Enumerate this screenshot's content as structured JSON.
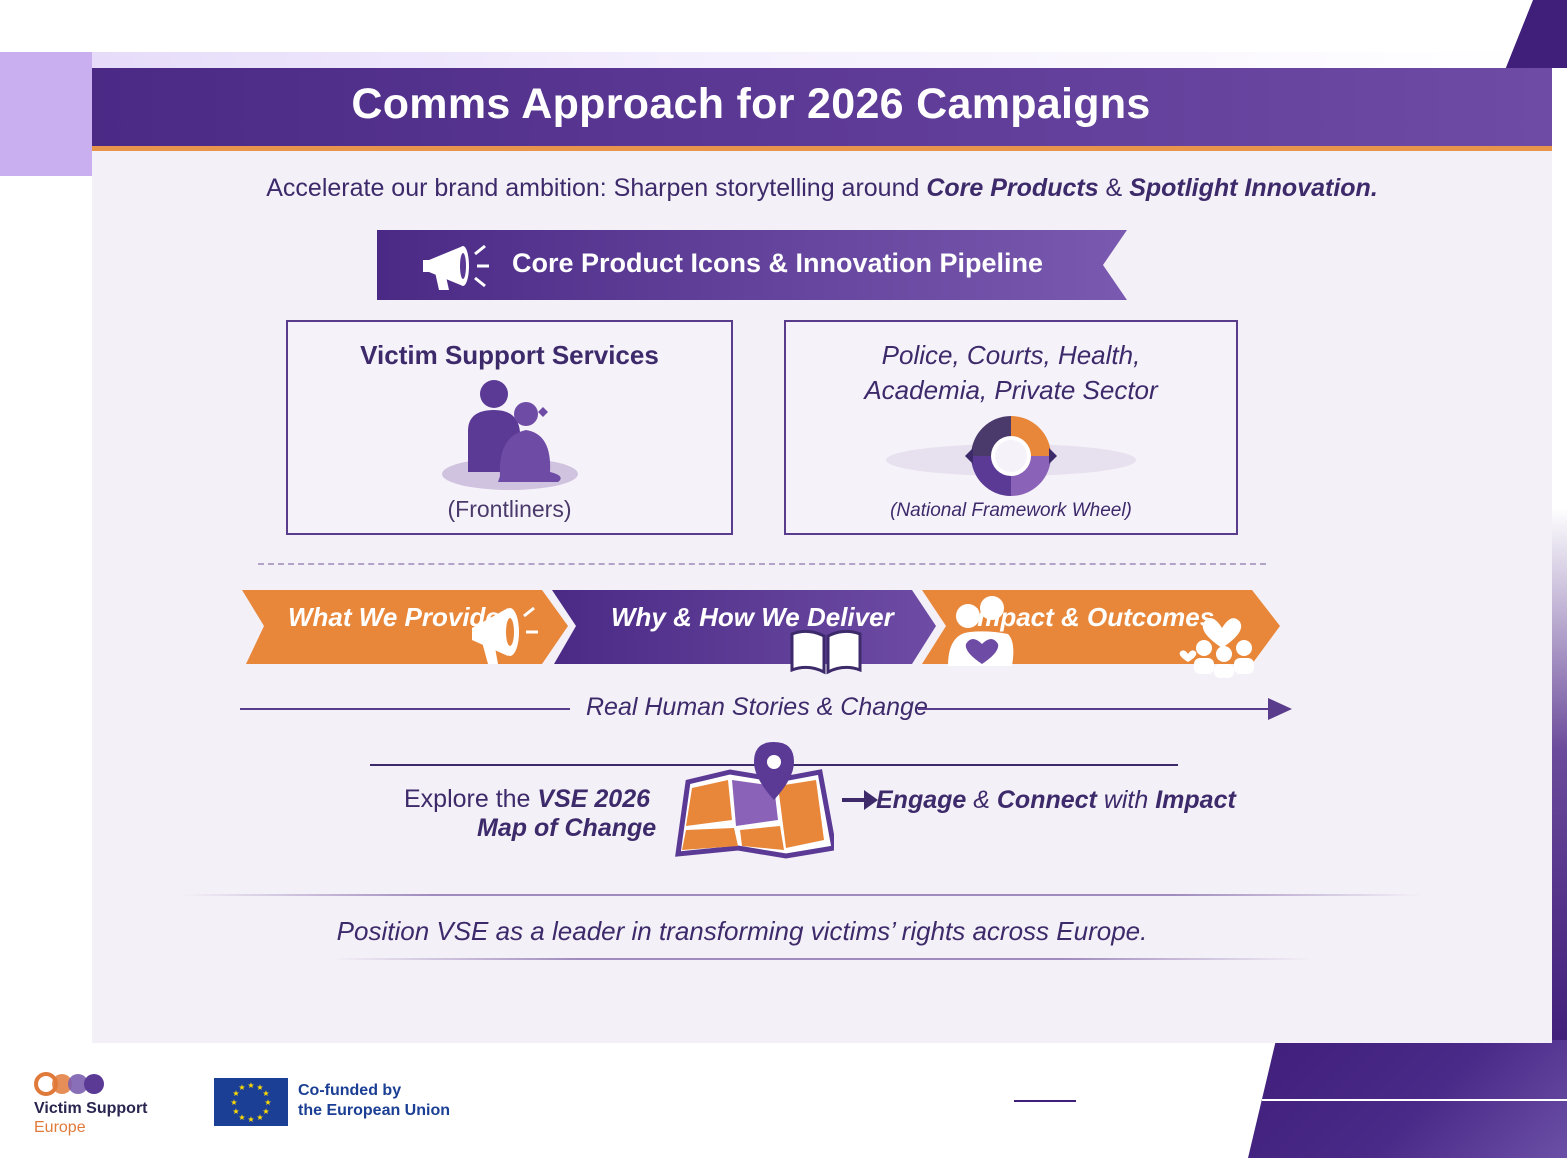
{
  "slide": {
    "title": "Comms Approach for 2026 Campaigns",
    "subtitle_prefix": "Accelerate our brand ambition: Sharpen storytelling around ",
    "subtitle_core": "Core Products",
    "subtitle_amp": " & ",
    "subtitle_spot": "Spotlight Innovation.",
    "banner": "Core Product Icons & Innovation Pipeline",
    "box_left": {
      "title": "Victim Support Services",
      "caption": "(Frontliners)"
    },
    "box_right": {
      "line1": "Police, Courts, Health,",
      "line2": "Academia, Private Sector",
      "caption": "(National Framework Wheel)"
    },
    "chevrons": [
      {
        "label": "What We Provide",
        "color": "#e8873a"
      },
      {
        "label": "Why & How We Deliver",
        "color": "#5b3a96"
      },
      {
        "label": "Impact & Outcomes",
        "color": "#e8873a"
      }
    ],
    "story_label": "Real Human Stories & Change",
    "explore_line1_prefix": "Explore the ",
    "explore_line1_bold": "VSE 2026",
    "explore_line2": "Map of Change",
    "engage": {
      "part1": "Engage",
      "part2": " & ",
      "part3": "Connect",
      "part4": " with ",
      "part5": "Impact"
    },
    "position": "Position VSE as a leader in transforming victims’ rights across Europe."
  },
  "footer": {
    "vse_name": "Victim Support",
    "vse_sub": "Europe",
    "eu_line1": "Co-funded by",
    "eu_line2": "the European Union"
  },
  "colors": {
    "primary_purple": "#4a2a85",
    "accent_orange": "#e8873a",
    "text_dark": "#3d2a6b",
    "eu_blue": "#1b3f94"
  }
}
